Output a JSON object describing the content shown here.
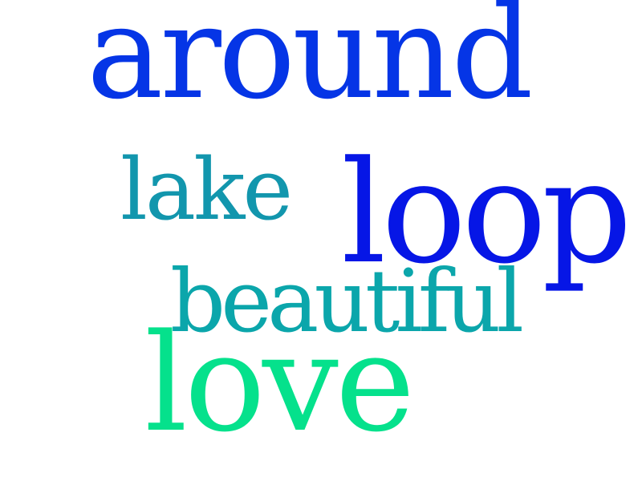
{
  "words": [
    {
      "id": "around",
      "text": "around",
      "color": "#0535e6"
    },
    {
      "id": "lake",
      "text": "lake",
      "color": "#1296ad"
    },
    {
      "id": "loop",
      "text": "loop",
      "color": "#0616e6"
    },
    {
      "id": "beautiful",
      "text": "beautiful",
      "color": "#0ba6ab"
    },
    {
      "id": "love",
      "text": "love",
      "color": "#05e18c"
    }
  ]
}
